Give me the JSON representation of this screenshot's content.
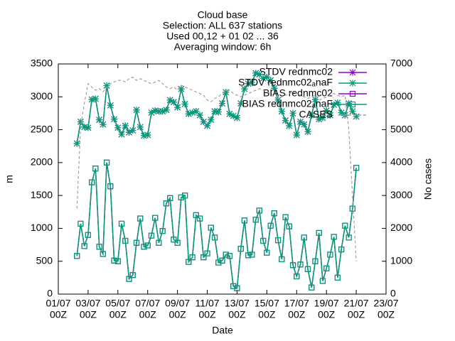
{
  "chart_data": {
    "type": "line",
    "title": [
      "Cloud base",
      "Selection: ALL    637 stations",
      "Used 00,12 + 01 02 ... 36",
      "Averaging window:  6h"
    ],
    "xlabel": "Date",
    "ylabel": "m",
    "y2label": "No cases",
    "xlim": [
      "01/07 00Z",
      "23/07 00Z"
    ],
    "xticks": [
      {
        "value": "01/07 00Z",
        "label": [
          "01/07",
          "00Z"
        ]
      },
      {
        "value": "03/07 00Z",
        "label": [
          "03/07",
          "00Z"
        ]
      },
      {
        "value": "05/07 00Z",
        "label": [
          "05/07",
          "00Z"
        ]
      },
      {
        "value": "07/07 00Z",
        "label": [
          "07/07",
          "00Z"
        ]
      },
      {
        "value": "09/07 00Z",
        "label": [
          "09/07",
          "00Z"
        ]
      },
      {
        "value": "11/07 00Z",
        "label": [
          "11/07",
          "00Z"
        ]
      },
      {
        "value": "13/07 00Z",
        "label": [
          "13/07",
          "00Z"
        ]
      },
      {
        "value": "15/07 00Z",
        "label": [
          "15/07",
          "00Z"
        ]
      },
      {
        "value": "17/07 00Z",
        "label": [
          "17/07",
          "00Z"
        ]
      },
      {
        "value": "19/07 00Z",
        "label": [
          "19/07",
          "00Z"
        ]
      },
      {
        "value": "21/07 00Z",
        "label": [
          "21/07",
          "00Z"
        ]
      },
      {
        "value": "23/07 00Z",
        "label": [
          "23/07",
          "00Z"
        ]
      }
    ],
    "ylim": [
      0,
      3500
    ],
    "yticks": [
      0,
      500,
      1000,
      1500,
      2000,
      2500,
      3000,
      3500
    ],
    "y2lim": [
      0,
      7000
    ],
    "y2ticks": [
      0,
      1000,
      2000,
      3000,
      4000,
      5000,
      6000,
      7000
    ],
    "legend": "top-right",
    "x": [
      "02/07 06Z",
      "02/07 12Z",
      "02/07 18Z",
      "03/07 00Z",
      "03/07 06Z",
      "03/07 12Z",
      "03/07 18Z",
      "04/07 00Z",
      "04/07 06Z",
      "04/07 12Z",
      "04/07 18Z",
      "05/07 00Z",
      "05/07 06Z",
      "05/07 12Z",
      "05/07 18Z",
      "06/07 00Z",
      "06/07 06Z",
      "06/07 12Z",
      "06/07 18Z",
      "07/07 00Z",
      "07/07 06Z",
      "07/07 12Z",
      "07/07 18Z",
      "08/07 00Z",
      "08/07 06Z",
      "08/07 12Z",
      "08/07 18Z",
      "09/07 00Z",
      "09/07 06Z",
      "09/07 12Z",
      "09/07 18Z",
      "10/07 00Z",
      "10/07 06Z",
      "10/07 12Z",
      "10/07 18Z",
      "11/07 00Z",
      "11/07 06Z",
      "11/07 12Z",
      "11/07 18Z",
      "12/07 00Z",
      "12/07 06Z",
      "12/07 12Z",
      "12/07 18Z",
      "13/07 00Z",
      "13/07 06Z",
      "13/07 12Z",
      "13/07 18Z",
      "14/07 00Z",
      "14/07 06Z",
      "14/07 12Z",
      "14/07 18Z",
      "15/07 00Z",
      "15/07 06Z",
      "15/07 12Z",
      "15/07 18Z",
      "16/07 00Z",
      "16/07 06Z",
      "16/07 12Z",
      "16/07 18Z",
      "17/07 00Z",
      "17/07 06Z",
      "17/07 12Z",
      "17/07 18Z",
      "18/07 00Z",
      "18/07 06Z",
      "18/07 12Z",
      "18/07 18Z",
      "19/07 00Z",
      "19/07 06Z",
      "19/07 12Z",
      "19/07 18Z",
      "20/07 00Z",
      "20/07 06Z",
      "20/07 12Z",
      "20/07 18Z",
      "21/07 00Z"
    ],
    "series": [
      {
        "name": "STDV rednmc02",
        "color": "#9400d3",
        "marker": "star",
        "values": [
          2290,
          2620,
          2540,
          2530,
          2960,
          2970,
          2650,
          2580,
          3170,
          2870,
          2660,
          2530,
          2430,
          2560,
          2460,
          2490,
          2800,
          2540,
          2410,
          2420,
          2760,
          2790,
          2780,
          2780,
          2800,
          2950,
          2920,
          2840,
          3120,
          2890,
          2740,
          2760,
          2780,
          2720,
          2620,
          2560,
          2650,
          2780,
          2770,
          2900,
          3070,
          2740,
          2710,
          2680,
          2900,
          3120,
          3200,
          3220,
          3360,
          3340,
          3280,
          3300,
          3250,
          3130,
          2950,
          2780,
          2640,
          2560,
          2750,
          2420,
          2620,
          2580,
          2470,
          2720,
          2960,
          2660,
          2680,
          2790,
          2720,
          2880,
          2910,
          2760,
          2720,
          2900,
          2780,
          2700
        ]
      },
      {
        "name": "STDV rednmc02ₐnaF",
        "color": "#009e73",
        "marker": "star",
        "values": [
          2290,
          2620,
          2540,
          2530,
          2960,
          2970,
          2650,
          2580,
          3170,
          2870,
          2660,
          2530,
          2430,
          2560,
          2460,
          2490,
          2800,
          2540,
          2410,
          2420,
          2760,
          2790,
          2780,
          2780,
          2800,
          2950,
          2920,
          2840,
          3120,
          2890,
          2740,
          2760,
          2780,
          2720,
          2620,
          2560,
          2650,
          2780,
          2770,
          2900,
          3070,
          2740,
          2710,
          2680,
          2900,
          3120,
          3200,
          3220,
          3360,
          3340,
          3280,
          3300,
          3250,
          3130,
          2950,
          2780,
          2640,
          2560,
          2750,
          2420,
          2620,
          2580,
          2470,
          2720,
          2960,
          2660,
          2680,
          2790,
          2720,
          2880,
          2910,
          2760,
          2720,
          2900,
          2780,
          2700
        ]
      },
      {
        "name": "BIAS rednmc02",
        "color": "#9400d3",
        "marker": "square",
        "values": [
          580,
          1070,
          730,
          900,
          1700,
          1910,
          720,
          610,
          2000,
          1640,
          510,
          500,
          1070,
          810,
          230,
          290,
          780,
          1150,
          720,
          740,
          890,
          1160,
          780,
          960,
          1380,
          1460,
          830,
          780,
          1470,
          1500,
          490,
          560,
          1200,
          1150,
          560,
          620,
          1010,
          860,
          480,
          510,
          600,
          580,
          120,
          90,
          690,
          1120,
          590,
          600,
          1130,
          1270,
          810,
          630,
          1040,
          1230,
          820,
          530,
          1170,
          1030,
          440,
          270,
          450,
          860,
          380,
          100,
          500,
          930,
          200,
          390,
          600,
          870,
          250,
          680,
          1040,
          860,
          1300,
          1920
        ]
      },
      {
        "name": "BIAS rednmc02ₐnaF",
        "color": "#009e73",
        "marker": "square",
        "values": [
          580,
          1070,
          730,
          900,
          1700,
          1910,
          720,
          610,
          2000,
          1640,
          510,
          500,
          1070,
          810,
          230,
          290,
          780,
          1150,
          720,
          740,
          890,
          1160,
          780,
          960,
          1380,
          1460,
          830,
          780,
          1470,
          1500,
          490,
          560,
          1200,
          1150,
          560,
          620,
          1010,
          860,
          480,
          510,
          600,
          580,
          120,
          90,
          690,
          1120,
          590,
          600,
          1130,
          1270,
          810,
          630,
          1040,
          1230,
          820,
          530,
          1170,
          1030,
          440,
          270,
          450,
          860,
          380,
          100,
          500,
          930,
          200,
          390,
          600,
          870,
          250,
          680,
          1040,
          860,
          1300,
          1920
        ]
      },
      {
        "name": "CASES",
        "color": "#a0a0a0",
        "dashed": true,
        "axis": "y2",
        "values": [
          2600,
          5100,
          5800,
          6400,
          6300,
          6200,
          6250,
          6150,
          6300,
          6400,
          6450,
          6500,
          6500,
          6450,
          6550,
          6600,
          6500,
          6550,
          6500,
          6450,
          6400,
          6450,
          6500,
          6400,
          6300,
          6250,
          6300,
          6200,
          6350,
          6300,
          6250,
          6200,
          6150,
          6100,
          6050,
          5900,
          5850,
          5950,
          6000,
          6100,
          6150,
          6200,
          6100,
          6050,
          6000,
          6050,
          6100,
          6150,
          6200,
          6250,
          6200,
          6150,
          6100,
          6000,
          5950,
          6000,
          6050,
          6100,
          6150,
          6100,
          6050,
          6000,
          5950,
          6000,
          6050,
          5900,
          5950,
          6000,
          6050,
          6100,
          6050,
          6000,
          6050,
          5000,
          3000,
          1000
        ]
      }
    ]
  }
}
